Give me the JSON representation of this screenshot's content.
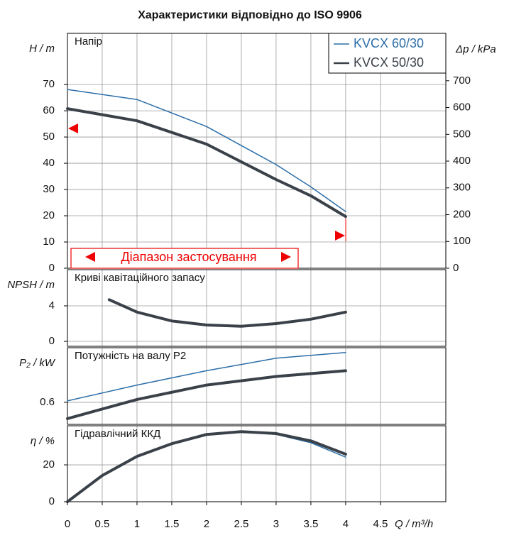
{
  "title": "Характеристики відповідно до ISO 9906",
  "chart_data": [
    {
      "type": "line",
      "title": "Напір",
      "ylabel": "H / m",
      "y2label": "Δp / kPa",
      "xlim": [
        0,
        5.44
      ],
      "ylim": [
        0,
        89.5
      ],
      "yticks": [
        0,
        10,
        20,
        30,
        40,
        50,
        60,
        70
      ],
      "y2lim": [
        0,
        877
      ],
      "y2ticks": [
        0,
        100,
        200,
        300,
        400,
        500,
        600,
        700
      ],
      "grid": true,
      "annotation": "Діапазон застосування",
      "x": [
        0,
        1,
        2,
        3,
        3.5,
        4
      ],
      "series": [
        {
          "name": "KVCX 60/30",
          "color": "#2b6ea8",
          "width": 1.5,
          "values": [
            68.1,
            64.3,
            54,
            39.5,
            31,
            21.6
          ]
        },
        {
          "name": "KVCX 50/30",
          "color": "#3a4149",
          "width": 4,
          "values": [
            60.8,
            56.2,
            47.3,
            33.8,
            27.6,
            19.7
          ]
        }
      ]
    },
    {
      "type": "line",
      "title": "Криві кавітаційного запасу",
      "ylabel": "NPSH / m",
      "xlim": [
        0,
        5.44
      ],
      "ylim": [
        -0.56,
        8.08
      ],
      "yticks": [
        0,
        4
      ],
      "grid": true,
      "x": [
        0.6,
        1,
        1.5,
        2,
        2.5,
        3,
        3.5,
        4
      ],
      "series": [
        {
          "color": "#3a4149",
          "width": 4,
          "values": [
            4.7,
            3.3,
            2.3,
            1.84,
            1.7,
            2.0,
            2.5,
            3.3
          ]
        }
      ]
    },
    {
      "type": "line",
      "title": "Потужність на валу P2",
      "ylabel": "P₂ / kW",
      "xlim": [
        0,
        5.44
      ],
      "ylim": [
        0.37,
        1.17
      ],
      "yticks": [
        0.6
      ],
      "grid": true,
      "x": [
        0,
        1,
        2,
        3,
        4
      ],
      "series": [
        {
          "color": "#2b6ea8",
          "width": 1.5,
          "values": [
            0.615,
            0.78,
            0.93,
            1.06,
            1.12
          ]
        },
        {
          "color": "#3a4149",
          "width": 4,
          "values": [
            0.43,
            0.63,
            0.78,
            0.87,
            0.93
          ]
        }
      ]
    },
    {
      "type": "line",
      "title": "Гідравлічний ККД",
      "ylabel": "η / %",
      "xlabel": "Q / m³/h",
      "xlim": [
        0,
        5.44
      ],
      "ylim": [
        0,
        41.2
      ],
      "yticks": [
        0,
        20
      ],
      "grid": true,
      "xticks": [
        0,
        0.5,
        1,
        1.5,
        2,
        2.5,
        3,
        3.5,
        4,
        4.5
      ],
      "x": [
        0,
        0.5,
        1,
        1.5,
        2,
        2.5,
        3,
        3.5,
        4
      ],
      "series": [
        {
          "color": "#2b6ea8",
          "width": 1.5,
          "values": [
            0,
            13.8,
            24.2,
            31.2,
            36.2,
            37.8,
            36.5,
            32,
            24.2
          ]
        },
        {
          "color": "#3a4149",
          "width": 4,
          "values": [
            0,
            14.2,
            24.6,
            31.5,
            36.5,
            38,
            37,
            33,
            25.8
          ]
        }
      ]
    }
  ]
}
